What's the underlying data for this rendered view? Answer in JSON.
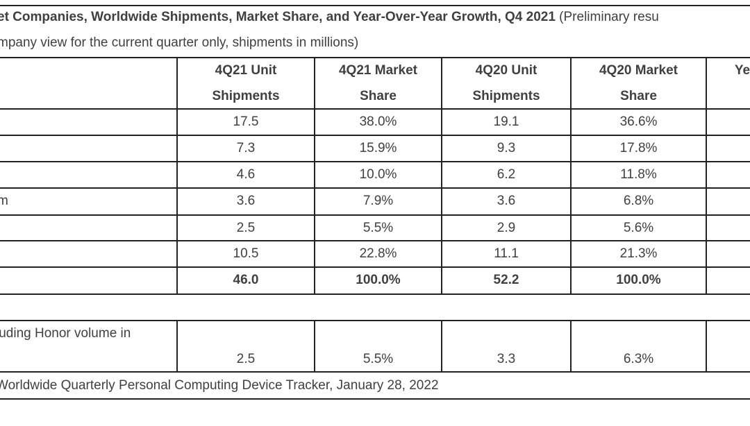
{
  "title": {
    "bold": "et Companies, Worldwide Shipments, Market Share, and Year-Over-Year Growth, Q4 2021",
    "normal": " (Preliminary resu"
  },
  "subtitle": "mpany view for the current quarter only, shipments in millions)",
  "columns": [
    {
      "line1": "4Q21 Unit",
      "line2": "Shipments"
    },
    {
      "line1": "4Q21 Market",
      "line2": "Share"
    },
    {
      "line1": "4Q20 Unit",
      "line2": "Shipments"
    },
    {
      "line1": "4Q20 Market",
      "line2": "Share"
    },
    {
      "line1": "Year",
      "line2": ""
    }
  ],
  "rows": [
    {
      "label": "",
      "values": [
        "17.5",
        "38.0%",
        "19.1",
        "36.6%"
      ]
    },
    {
      "label": "",
      "values": [
        "7.3",
        "15.9%",
        "9.3",
        "17.8%"
      ]
    },
    {
      "label": "",
      "values": [
        "4.6",
        "10.0%",
        "6.2",
        "11.8%"
      ]
    },
    {
      "label": "m",
      "values": [
        "3.6",
        "7.9%",
        "3.6",
        "6.8%"
      ]
    },
    {
      "label": "",
      "values": [
        "2.5",
        "5.5%",
        "2.9",
        "5.6%"
      ]
    },
    {
      "label": "",
      "values": [
        "10.5",
        "22.8%",
        "11.1",
        "21.3%"
      ]
    },
    {
      "label": "",
      "values": [
        "46.0",
        "100.0%",
        "52.2",
        "100.0%"
      ],
      "bold": true
    }
  ],
  "honor_row": {
    "label": "luding Honor volume in",
    "values": [
      "2.5",
      "5.5%",
      "3.3",
      "6.3%"
    ]
  },
  "source": "Worldwide Quarterly Personal Computing Device Tracker, January 28, 2022"
}
